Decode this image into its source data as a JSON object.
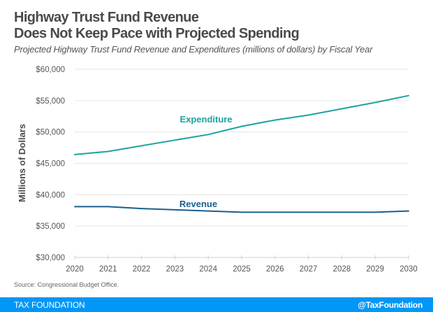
{
  "header": {
    "title_line1": "Highway Trust Fund Revenue",
    "title_line2": "Does Not Keep Pace with Projected Spending",
    "subtitle": "Projected Highway Trust Fund Revenue and Expenditures (millions of dollars) by Fiscal Year"
  },
  "chart_data": {
    "type": "line",
    "title": "Highway Trust Fund Revenue Does Not Keep Pace with Projected Spending",
    "subtitle": "Projected Highway Trust Fund Revenue and Expenditures (millions of dollars) by Fiscal Year",
    "xlabel": "",
    "ylabel": "Millions of Dollars",
    "x": [
      2020,
      2021,
      2022,
      2023,
      2024,
      2025,
      2026,
      2027,
      2028,
      2029,
      2030
    ],
    "x_tick_labels": [
      "2020",
      "2021",
      "2022",
      "2023",
      "2024",
      "2025",
      "2026",
      "2027",
      "2028",
      "2029",
      "2030"
    ],
    "ylim": [
      30000,
      60000
    ],
    "y_ticks": [
      30000,
      35000,
      40000,
      45000,
      50000,
      55000,
      60000
    ],
    "y_tick_labels": [
      "$30,000",
      "$35,000",
      "$40,000",
      "$45,000",
      "$50,000",
      "$55,000",
      "$60,000"
    ],
    "grid": true,
    "legend": "inline labels",
    "series": [
      {
        "name": "Expenditure",
        "color": "#1ba3a0",
        "values": [
          46400,
          46900,
          47800,
          48700,
          49600,
          50900,
          51900,
          52700,
          53700,
          54700,
          55800
        ]
      },
      {
        "name": "Revenue",
        "color": "#1a5f8e",
        "values": [
          38100,
          38100,
          37800,
          37600,
          37400,
          37200,
          37200,
          37200,
          37200,
          37200,
          37400
        ]
      }
    ]
  },
  "source": "Source: Congressional Budget Office.",
  "footer": {
    "brand": "TAX FOUNDATION",
    "handle": "@TaxFoundation",
    "background": "#0097f6"
  }
}
